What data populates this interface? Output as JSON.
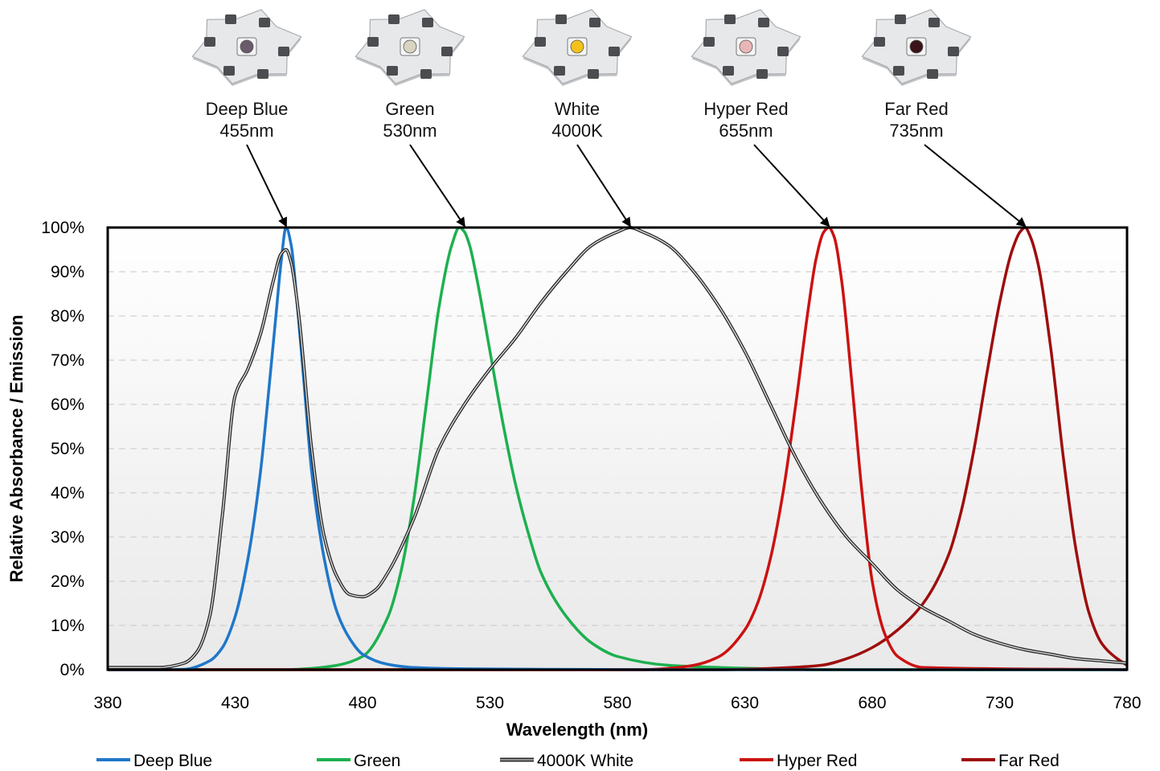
{
  "chart_data": {
    "type": "line",
    "xlabel": "Wavelength (nm)",
    "ylabel": "Relative Absorbance / Emission",
    "xlim": [
      380,
      780
    ],
    "ylim": [
      0,
      100
    ],
    "x_ticks": [
      "380",
      "430",
      "480",
      "530",
      "580",
      "630",
      "680",
      "730",
      "780"
    ],
    "y_ticks": [
      "0%",
      "10%",
      "20%",
      "30%",
      "40%",
      "50%",
      "60%",
      "70%",
      "80%",
      "90%",
      "100%"
    ],
    "grid": "horizontal dashed",
    "legend": "bottom",
    "annotations": [
      {
        "line1": "Deep Blue",
        "line2": "455nm",
        "peak_x": 450,
        "peak_y": 100,
        "chip": "#6a5a6a"
      },
      {
        "line1": "Green",
        "line2": "530nm",
        "peak_x": 520,
        "peak_y": 100,
        "chip": "#d9d3c2"
      },
      {
        "line1": "White",
        "line2": "4000K",
        "peak_x": 585,
        "peak_y": 100,
        "chip": "#f2c21a"
      },
      {
        "line1": "Hyper Red",
        "line2": "655nm",
        "peak_x": 663,
        "peak_y": 100,
        "chip": "#e9b6b8"
      },
      {
        "line1": "Far Red",
        "line2": "735nm",
        "peak_x": 740,
        "peak_y": 100,
        "chip": "#3a1418"
      }
    ],
    "series": [
      {
        "name": "Deep Blue",
        "color": "#1f77c9",
        "x": [
          380,
          400,
          410,
          420,
          425,
          430,
          435,
          440,
          443,
          446,
          448,
          450,
          452,
          454,
          457,
          460,
          465,
          470,
          475,
          480,
          490,
          500,
          520,
          550,
          600,
          650,
          700,
          780
        ],
        "y": [
          0,
          0,
          0.1,
          2,
          5,
          12,
          25,
          45,
          62,
          80,
          92,
          100,
          96,
          85,
          65,
          45,
          25,
          13,
          7,
          3.5,
          1.2,
          0.5,
          0.2,
          0.1,
          0,
          0,
          0,
          0
        ]
      },
      {
        "name": "Green",
        "color": "#1db04f",
        "x": [
          380,
          450,
          460,
          470,
          480,
          490,
          495,
          500,
          505,
          510,
          515,
          518,
          520,
          522,
          525,
          530,
          535,
          540,
          545,
          550,
          560,
          570,
          580,
          600,
          620,
          640,
          660,
          780
        ],
        "y": [
          0,
          0,
          0.3,
          1,
          3,
          12,
          22,
          38,
          60,
          82,
          96,
          100,
          99,
          96,
          88,
          72,
          56,
          42,
          31,
          22,
          12,
          6,
          3,
          1,
          0.5,
          0.2,
          0,
          0
        ]
      },
      {
        "name": "4000K White",
        "color": "#555555",
        "x": [
          380,
          400,
          410,
          415,
          420,
          425,
          430,
          435,
          440,
          445,
          448,
          450,
          452,
          455,
          460,
          465,
          470,
          475,
          480,
          485,
          490,
          500,
          510,
          520,
          530,
          540,
          550,
          560,
          570,
          580,
          585,
          590,
          600,
          610,
          620,
          630,
          640,
          650,
          660,
          670,
          680,
          690,
          700,
          710,
          720,
          730,
          740,
          750,
          760,
          770,
          780
        ],
        "y": [
          0.5,
          0.5,
          1.5,
          4,
          12,
          35,
          62,
          68,
          76,
          88,
          94,
          95,
          92,
          80,
          50,
          30,
          21,
          17,
          16.5,
          18,
          22,
          34,
          50,
          60,
          68,
          75,
          83,
          90,
          96,
          99,
          100,
          99,
          96,
          90,
          82,
          72,
          60,
          48,
          38,
          30,
          24,
          18,
          14,
          11,
          8,
          6,
          4.5,
          3.5,
          2.5,
          2,
          1.5
        ]
      },
      {
        "name": "Hyper Red",
        "color": "#cc1111",
        "x": [
          380,
          590,
          600,
          610,
          620,
          630,
          635,
          640,
          645,
          650,
          655,
          658,
          661,
          663,
          665,
          668,
          672,
          676,
          680,
          685,
          690,
          700,
          780
        ],
        "y": [
          0,
          0,
          0.3,
          1,
          3,
          9,
          15,
          25,
          40,
          60,
          82,
          93,
          99,
          100,
          98,
          88,
          65,
          40,
          20,
          8,
          3,
          0.5,
          0
        ]
      },
      {
        "name": "Far Red",
        "color": "#9e0d0d",
        "x": [
          380,
          620,
          640,
          660,
          670,
          680,
          690,
          700,
          710,
          715,
          720,
          725,
          730,
          735,
          738,
          740,
          742,
          745,
          750,
          755,
          760,
          765,
          770,
          775,
          780
        ],
        "y": [
          0,
          0,
          0.3,
          1,
          2.5,
          5,
          9,
          15,
          26,
          36,
          50,
          67,
          83,
          95,
          99,
          100,
          98,
          92,
          73,
          48,
          27,
          13,
          6,
          3,
          1
        ]
      }
    ]
  }
}
